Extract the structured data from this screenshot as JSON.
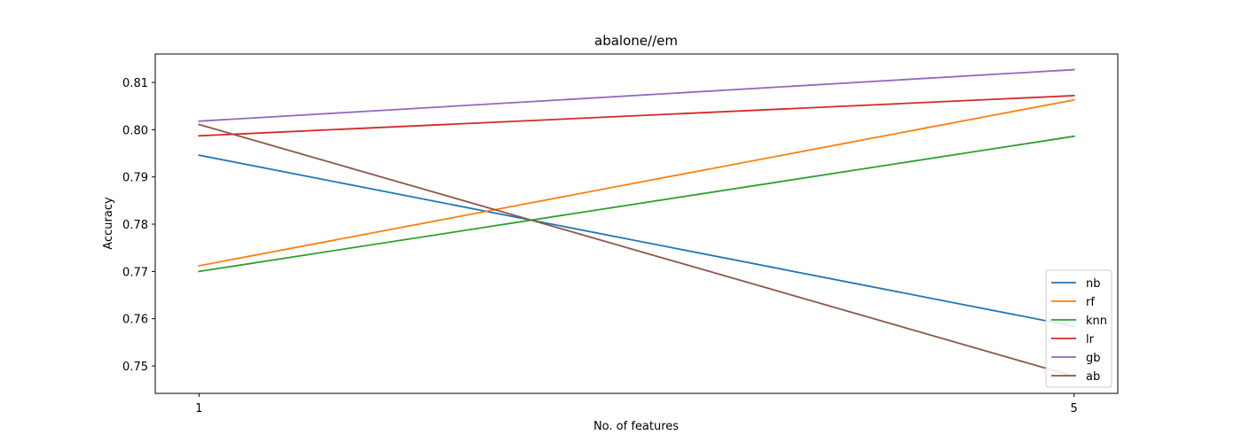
{
  "chart_data": {
    "type": "line",
    "title": "abalone//em",
    "xlabel": "No. of features",
    "ylabel": "Accuracy",
    "x": [
      1,
      5
    ],
    "x_ticks": [
      "1",
      "5"
    ],
    "y_ticks": [
      "0.75",
      "0.76",
      "0.77",
      "0.78",
      "0.79",
      "0.80",
      "0.81"
    ],
    "y_tick_values": [
      0.75,
      0.76,
      0.77,
      0.78,
      0.79,
      0.8,
      0.81
    ],
    "xlim": [
      0.8,
      5.2
    ],
    "ylim": [
      0.7442,
      0.816
    ],
    "grid": false,
    "legend_position": "lower-right",
    "series": [
      {
        "name": "nb",
        "color": "#1f77b4",
        "values": [
          0.7946,
          0.7584
        ]
      },
      {
        "name": "rf",
        "color": "#ff7f0e",
        "values": [
          0.7712,
          0.8063
        ]
      },
      {
        "name": "knn",
        "color": "#2ca02c",
        "values": [
          0.77,
          0.7986
        ]
      },
      {
        "name": "lr",
        "color": "#d62728",
        "values": [
          0.7987,
          0.8072
        ]
      },
      {
        "name": "gb",
        "color": "#9467bd",
        "values": [
          0.8018,
          0.8127
        ]
      },
      {
        "name": "ab",
        "color": "#8c564b",
        "values": [
          0.8011,
          0.7478
        ]
      }
    ]
  }
}
